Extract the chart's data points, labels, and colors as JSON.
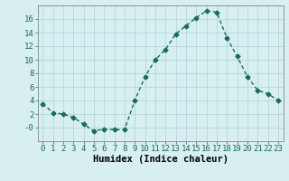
{
  "x": [
    0,
    1,
    2,
    3,
    4,
    5,
    6,
    7,
    8,
    9,
    10,
    11,
    12,
    13,
    14,
    15,
    16,
    17,
    18,
    19,
    20,
    21,
    22,
    23
  ],
  "y": [
    3.5,
    2.2,
    2.0,
    1.5,
    0.5,
    -0.5,
    -0.2,
    -0.3,
    -0.3,
    4.0,
    7.5,
    10.0,
    11.5,
    13.8,
    15.0,
    16.2,
    17.2,
    17.0,
    13.2,
    10.5,
    7.5,
    5.5,
    5.0,
    4.0
  ],
  "line_color": "#1a6b5a",
  "marker": "D",
  "marker_size": 2.5,
  "bg_color": "#d7eff0",
  "grid_color": "#aad4d8",
  "xlabel": "Humidex (Indice chaleur)",
  "xlabel_fontsize": 7.5,
  "ylim": [
    -2,
    18
  ],
  "xlim": [
    -0.5,
    23.5
  ],
  "yticks": [
    0,
    2,
    4,
    6,
    8,
    10,
    12,
    14,
    16
  ],
  "ytick_labels": [
    "-0",
    "2",
    "4",
    "6",
    "8",
    "10",
    "12",
    "14",
    "16"
  ],
  "xticks": [
    0,
    1,
    2,
    3,
    4,
    5,
    6,
    7,
    8,
    9,
    10,
    11,
    12,
    13,
    14,
    15,
    16,
    17,
    18,
    19,
    20,
    21,
    22,
    23
  ],
  "tick_fontsize": 6.5,
  "linewidth": 1.0
}
